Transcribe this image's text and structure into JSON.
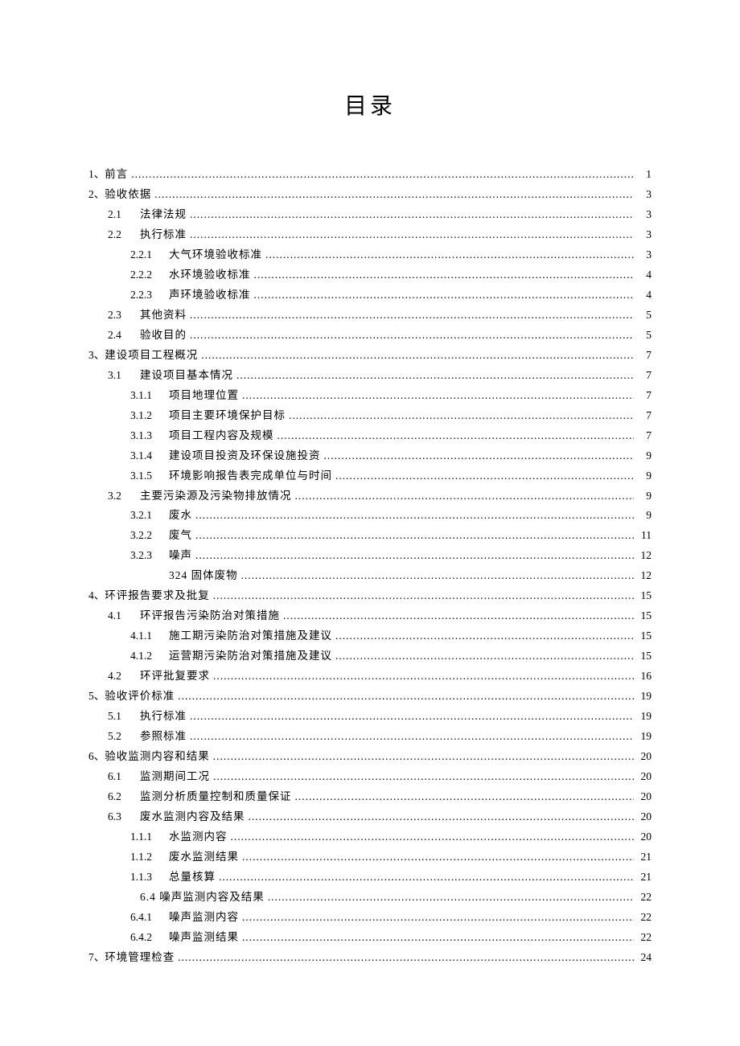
{
  "title": "目录",
  "colors": {
    "background": "#ffffff",
    "text": "#000000"
  },
  "typography": {
    "font_family": "SimSun",
    "title_fontsize": 28,
    "body_fontsize": 13.5,
    "line_height": 1.85
  },
  "toc": [
    {
      "level": 0,
      "num": "1、",
      "label": "前言",
      "page": "1"
    },
    {
      "level": 0,
      "num": "2、",
      "label": "验收依据",
      "page": "3"
    },
    {
      "level": 1,
      "num": "2.1",
      "label": "法律法规",
      "page": "3"
    },
    {
      "level": 1,
      "num": "2.2",
      "label": "执行标准",
      "page": "3"
    },
    {
      "level": 2,
      "num": "2.2.1",
      "label": "大气环境验收标准",
      "page": "3"
    },
    {
      "level": 2,
      "num": "2.2.2",
      "label": "水环境验收标准",
      "page": "4"
    },
    {
      "level": 2,
      "num": "2.2.3",
      "label": "声环境验收标准",
      "page": "4"
    },
    {
      "level": 1,
      "num": "2.3",
      "label": "其他资料",
      "page": "5"
    },
    {
      "level": 1,
      "num": "2.4",
      "label": "验收目的",
      "page": "5"
    },
    {
      "level": 0,
      "num": "3、",
      "label": "建设项目工程概况",
      "page": "7"
    },
    {
      "level": 1,
      "num": "3.1",
      "label": "建设项目基本情况",
      "page": "7"
    },
    {
      "level": 2,
      "num": "3.1.1",
      "label": "项目地理位置",
      "page": "7"
    },
    {
      "level": 2,
      "num": "3.1.2",
      "label": "项目主要环境保护目标",
      "page": "7"
    },
    {
      "level": 2,
      "num": "3.1.3",
      "label": "项目工程内容及规模",
      "page": "7"
    },
    {
      "level": 2,
      "num": "3.1.4",
      "label": "建设项目投资及环保设施投资",
      "page": "9"
    },
    {
      "level": 2,
      "num": "3.1.5",
      "label": "环境影响报告表完成单位与时间",
      "page": "9"
    },
    {
      "level": 1,
      "num": "3.2",
      "label": "主要污染源及污染物排放情况",
      "page": "9"
    },
    {
      "level": 2,
      "num": "3.2.1",
      "label": "废水",
      "page": "9"
    },
    {
      "level": 2,
      "num": "3.2.2",
      "label": "废气",
      "page": "11"
    },
    {
      "level": 2,
      "num": "3.2.3",
      "label": "噪声",
      "page": "12"
    },
    {
      "level": 2,
      "num": "",
      "label": "324 固体废物",
      "page": "12"
    },
    {
      "level": 0,
      "num": "4、",
      "label": "环评报告要求及批复",
      "page": "15"
    },
    {
      "level": 1,
      "num": "4.1",
      "label": "环评报告污染防治对策措施",
      "page": "15"
    },
    {
      "level": 2,
      "num": "4.1.1",
      "label": "施工期污染防治对策措施及建议",
      "page": "15"
    },
    {
      "level": 2,
      "num": "4.1.2",
      "label": "运营期污染防治对策措施及建议",
      "page": "15"
    },
    {
      "level": 1,
      "num": "4.2",
      "label": "环评批复要求",
      "page": "16"
    },
    {
      "level": 0,
      "num": "5、",
      "label": "验收评价标准",
      "page": "19"
    },
    {
      "level": 1,
      "num": "5.1",
      "label": "执行标准",
      "page": "19"
    },
    {
      "level": 1,
      "num": "5.2",
      "label": "参照标准",
      "page": "19"
    },
    {
      "level": 0,
      "num": "6、",
      "label": "验收监测内容和结果",
      "page": "20"
    },
    {
      "level": 1,
      "num": "6.1",
      "label": "监测期间工况",
      "page": "20"
    },
    {
      "level": 1,
      "num": "6.2",
      "label": "监测分析质量控制和质量保证",
      "page": "20"
    },
    {
      "level": 1,
      "num": "6.3",
      "label": "废水监测内容及结果",
      "page": "20"
    },
    {
      "level": 2,
      "num": "1.1.1",
      "label": "水监测内容",
      "page": "20"
    },
    {
      "level": 2,
      "num": "1.1.2",
      "label": "废水监测结果",
      "page": "21"
    },
    {
      "level": 2,
      "num": "1.1.3",
      "label": "总量核算",
      "page": "21"
    },
    {
      "level": 1,
      "num": "",
      "label": "6.4 噪声监测内容及结果",
      "page": "22"
    },
    {
      "level": 2,
      "num": "6.4.1",
      "label": "噪声监测内容",
      "page": "22"
    },
    {
      "level": 2,
      "num": "6.4.2",
      "label": "噪声监测结果",
      "page": "22"
    },
    {
      "level": 0,
      "num": "7、",
      "label": "环境管理检查",
      "page": "24"
    }
  ]
}
